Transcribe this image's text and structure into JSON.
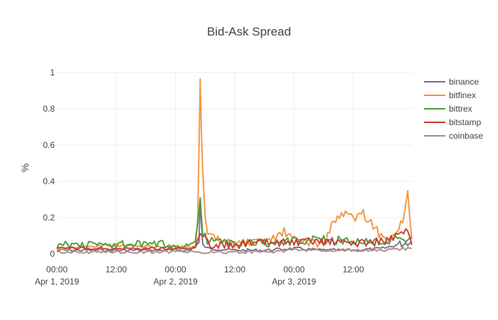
{
  "chart_data": {
    "type": "line",
    "title": "Bid-Ask Spread",
    "xlabel": "",
    "ylabel": "%",
    "x_range": [
      "2019-04-01 00:00",
      "2019-04-04 00:00"
    ],
    "ylim": [
      0,
      1
    ],
    "y_ticks": [
      0,
      0.2,
      0.4,
      0.6,
      0.8,
      1
    ],
    "y_tick_labels": [
      "0",
      "0.2",
      "0.4",
      "0.6",
      "0.8",
      "1"
    ],
    "x_ticks": [
      {
        "t": "2019-04-01 00:00",
        "line1": "00:00",
        "line2": "Apr 1, 2019"
      },
      {
        "t": "2019-04-01 12:00",
        "line1": "12:00",
        "line2": ""
      },
      {
        "t": "2019-04-02 00:00",
        "line1": "00:00",
        "line2": "Apr 2, 2019"
      },
      {
        "t": "2019-04-02 12:00",
        "line1": "12:00",
        "line2": ""
      },
      {
        "t": "2019-04-03 00:00",
        "line1": "00:00",
        "line2": "Apr 3, 2019"
      },
      {
        "t": "2019-04-03 12:00",
        "line1": "12:00",
        "line2": ""
      }
    ],
    "grid": true,
    "legend_position": "top-right",
    "series": [
      {
        "name": "binance",
        "color": "#7b6a8c",
        "points": [
          [
            "2019-04-01 00:00",
            0.02
          ],
          [
            "2019-04-01 06:00",
            0.02
          ],
          [
            "2019-04-01 12:00",
            0.02
          ],
          [
            "2019-04-01 18:00",
            0.02
          ],
          [
            "2019-04-02 00:00",
            0.02
          ],
          [
            "2019-04-02 03:00",
            0.02
          ],
          [
            "2019-04-02 04:45",
            0.06
          ],
          [
            "2019-04-02 05:00",
            0.28
          ],
          [
            "2019-04-02 05:30",
            0.05
          ],
          [
            "2019-04-02 06:30",
            0.03
          ],
          [
            "2019-04-02 12:00",
            0.02
          ],
          [
            "2019-04-02 18:00",
            0.02
          ],
          [
            "2019-04-03 00:00",
            0.03
          ],
          [
            "2019-04-03 06:00",
            0.02
          ],
          [
            "2019-04-03 12:00",
            0.02
          ],
          [
            "2019-04-03 18:00",
            0.03
          ],
          [
            "2019-04-03 21:00",
            0.05
          ],
          [
            "2019-04-03 23:50",
            0.07
          ]
        ]
      },
      {
        "name": "bitfinex",
        "color": "#f0943c",
        "points": [
          [
            "2019-04-01 00:00",
            0.03
          ],
          [
            "2019-04-01 06:00",
            0.04
          ],
          [
            "2019-04-01 12:00",
            0.05
          ],
          [
            "2019-04-01 18:00",
            0.04
          ],
          [
            "2019-04-02 00:00",
            0.04
          ],
          [
            "2019-04-02 04:00",
            0.04
          ],
          [
            "2019-04-02 04:30",
            0.2
          ],
          [
            "2019-04-02 05:00",
            0.95
          ],
          [
            "2019-04-02 05:15",
            0.65
          ],
          [
            "2019-04-02 05:30",
            0.47
          ],
          [
            "2019-04-02 06:00",
            0.2
          ],
          [
            "2019-04-02 06:30",
            0.1
          ],
          [
            "2019-04-02 09:00",
            0.07
          ],
          [
            "2019-04-02 12:00",
            0.06
          ],
          [
            "2019-04-02 18:00",
            0.06
          ],
          [
            "2019-04-02 22:00",
            0.12
          ],
          [
            "2019-04-03 00:00",
            0.08
          ],
          [
            "2019-04-03 06:00",
            0.05
          ],
          [
            "2019-04-03 08:00",
            0.18
          ],
          [
            "2019-04-03 10:00",
            0.22
          ],
          [
            "2019-04-03 12:00",
            0.2
          ],
          [
            "2019-04-03 14:00",
            0.22
          ],
          [
            "2019-04-03 16:00",
            0.16
          ],
          [
            "2019-04-03 18:00",
            0.08
          ],
          [
            "2019-04-03 20:00",
            0.1
          ],
          [
            "2019-04-03 22:00",
            0.18
          ],
          [
            "2019-04-03 23:00",
            0.34
          ],
          [
            "2019-04-03 23:50",
            0.08
          ]
        ]
      },
      {
        "name": "bittrex",
        "color": "#4a9a3c",
        "points": [
          [
            "2019-04-01 00:00",
            0.05
          ],
          [
            "2019-04-01 06:00",
            0.05
          ],
          [
            "2019-04-01 12:00",
            0.05
          ],
          [
            "2019-04-01 18:00",
            0.05
          ],
          [
            "2019-04-02 00:00",
            0.05
          ],
          [
            "2019-04-02 04:00",
            0.05
          ],
          [
            "2019-04-02 05:00",
            0.33
          ],
          [
            "2019-04-02 05:30",
            0.12
          ],
          [
            "2019-04-02 06:30",
            0.07
          ],
          [
            "2019-04-02 12:00",
            0.06
          ],
          [
            "2019-04-02 18:00",
            0.06
          ],
          [
            "2019-04-03 00:00",
            0.07
          ],
          [
            "2019-04-03 06:00",
            0.08
          ],
          [
            "2019-04-03 12:00",
            0.07
          ],
          [
            "2019-04-03 18:00",
            0.07
          ],
          [
            "2019-04-03 23:50",
            0.09
          ]
        ]
      },
      {
        "name": "bitstamp",
        "color": "#c83a2e",
        "points": [
          [
            "2019-04-01 00:00",
            0.03
          ],
          [
            "2019-04-01 06:00",
            0.03
          ],
          [
            "2019-04-01 12:00",
            0.03
          ],
          [
            "2019-04-01 18:00",
            0.03
          ],
          [
            "2019-04-02 00:00",
            0.03
          ],
          [
            "2019-04-02 04:00",
            0.03
          ],
          [
            "2019-04-02 05:00",
            0.12
          ],
          [
            "2019-04-02 06:00",
            0.1
          ],
          [
            "2019-04-02 07:00",
            0.05
          ],
          [
            "2019-04-02 12:00",
            0.05
          ],
          [
            "2019-04-02 18:00",
            0.06
          ],
          [
            "2019-04-03 00:00",
            0.06
          ],
          [
            "2019-04-03 06:00",
            0.07
          ],
          [
            "2019-04-03 12:00",
            0.06
          ],
          [
            "2019-04-03 18:00",
            0.07
          ],
          [
            "2019-04-03 23:00",
            0.12
          ],
          [
            "2019-04-03 23:50",
            0.05
          ]
        ]
      },
      {
        "name": "coinbase",
        "color": "#a88c82",
        "points": [
          [
            "2019-04-01 00:00",
            0.01
          ],
          [
            "2019-04-01 06:00",
            0.01
          ],
          [
            "2019-04-01 12:00",
            0.01
          ],
          [
            "2019-04-01 18:00",
            0.01
          ],
          [
            "2019-04-02 00:00",
            0.01
          ],
          [
            "2019-04-02 05:00",
            0.01
          ],
          [
            "2019-04-02 12:00",
            0.01
          ],
          [
            "2019-04-02 18:00",
            0.01
          ],
          [
            "2019-04-03 00:00",
            0.02
          ],
          [
            "2019-04-03 06:00",
            0.02
          ],
          [
            "2019-04-03 12:00",
            0.02
          ],
          [
            "2019-04-03 18:00",
            0.02
          ],
          [
            "2019-04-03 23:50",
            0.03
          ]
        ]
      }
    ]
  }
}
